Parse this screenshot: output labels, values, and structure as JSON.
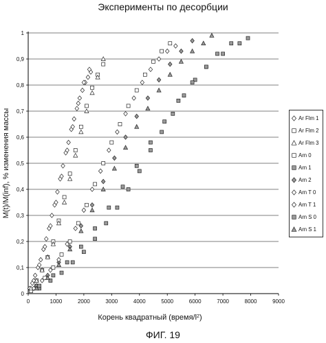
{
  "figure_label": "ФИГ. 19",
  "chart_data": {
    "type": "scatter",
    "title": "Эксперименты по десорбции",
    "xlabel": "Корень квадратный (время/l",
    "xlabel_sup": "2",
    "xlabel_tail": ")",
    "ylabel": "M(t)/M(inf), % изменения массы",
    "xlim": [
      0,
      9000
    ],
    "ylim": [
      0,
      1
    ],
    "xticks": [
      "0",
      "1000",
      "2000",
      "3000",
      "4000",
      "5000",
      "6000",
      "7000",
      "8000",
      "9000"
    ],
    "yticks": [
      "0",
      "0,1",
      "0,2",
      "0,3",
      "0,4",
      "0,5",
      "0,6",
      "0,7",
      "0,8",
      "0,9",
      "1"
    ],
    "grid": "horizontal",
    "legend_position": "right",
    "series": [
      {
        "name": "Ar Flm 1",
        "marker": "diamond",
        "fill": "#ffffff",
        "x": [
          50,
          150,
          250,
          350,
          450,
          550,
          650,
          750,
          850,
          950,
          1050,
          1150,
          1250,
          1350,
          1450,
          1550,
          1650,
          1750,
          1850,
          1950,
          2050,
          2150,
          2250
        ],
        "y": [
          0.02,
          0.04,
          0.07,
          0.1,
          0.13,
          0.17,
          0.21,
          0.25,
          0.3,
          0.34,
          0.39,
          0.44,
          0.49,
          0.54,
          0.58,
          0.63,
          0.67,
          0.71,
          0.75,
          0.78,
          0.81,
          0.83,
          0.85
        ]
      },
      {
        "name": "Ar Flm 2",
        "marker": "square",
        "fill": "#ffffff",
        "x": [
          100,
          300,
          500,
          700,
          900,
          1100,
          1300,
          1500,
          1700,
          1900,
          2100,
          2300,
          2500,
          2700
        ],
        "y": [
          0.01,
          0.05,
          0.09,
          0.14,
          0.2,
          0.28,
          0.37,
          0.46,
          0.55,
          0.64,
          0.72,
          0.79,
          0.84,
          0.88
        ]
      },
      {
        "name": "Ar Flm 3",
        "marker": "triangle",
        "fill": "#ffffff",
        "x": [
          100,
          300,
          500,
          700,
          900,
          1100,
          1300,
          1500,
          1700,
          1900,
          2100,
          2300,
          2500,
          2700
        ],
        "y": [
          0.02,
          0.05,
          0.09,
          0.14,
          0.19,
          0.27,
          0.35,
          0.44,
          0.53,
          0.62,
          0.7,
          0.77,
          0.83,
          0.9
        ]
      },
      {
        "name": "Arn 0",
        "marker": "square",
        "fill": "#ffffff",
        "x": [
          300,
          600,
          900,
          1200,
          1500,
          1800,
          2100,
          2400,
          2700,
          3000,
          3300,
          3600,
          3900,
          4200,
          4500,
          4800,
          5100
        ],
        "y": [
          0.03,
          0.06,
          0.1,
          0.15,
          0.2,
          0.27,
          0.34,
          0.42,
          0.5,
          0.58,
          0.65,
          0.72,
          0.78,
          0.84,
          0.89,
          0.93,
          0.96
        ]
      },
      {
        "name": "Arn 1",
        "marker": "square",
        "fill": "#9a9a9a",
        "x": [
          400,
          800,
          1200,
          1600,
          2000,
          2400,
          2800,
          3200,
          3600,
          4000,
          4400,
          4800,
          5200,
          5600,
          6000,
          6400,
          6800,
          7300,
          7900
        ],
        "y": [
          0.02,
          0.05,
          0.08,
          0.12,
          0.16,
          0.21,
          0.27,
          0.33,
          0.4,
          0.47,
          0.55,
          0.62,
          0.69,
          0.76,
          0.82,
          0.87,
          0.92,
          0.96,
          0.98
        ]
      },
      {
        "name": "Arn 2",
        "marker": "diamond",
        "fill": "#9a9a9a",
        "x": [
          300,
          700,
          1100,
          1500,
          1900,
          2300,
          2700,
          3100,
          3500,
          3900,
          4300,
          4700,
          5100,
          5500,
          5900
        ],
        "y": [
          0.03,
          0.07,
          0.12,
          0.18,
          0.26,
          0.34,
          0.43,
          0.52,
          0.6,
          0.68,
          0.75,
          0.82,
          0.88,
          0.93,
          0.97
        ]
      },
      {
        "name": "Arn T 0",
        "marker": "diamond",
        "fill": "#ffffff",
        "x": [
          200,
          500,
          800,
          1100,
          1400,
          1700,
          2000,
          2300,
          2600,
          2900,
          3200,
          3500,
          3800,
          4100,
          4400,
          4700,
          5000,
          5300
        ],
        "y": [
          0.02,
          0.05,
          0.09,
          0.13,
          0.19,
          0.25,
          0.32,
          0.4,
          0.47,
          0.55,
          0.62,
          0.69,
          0.75,
          0.81,
          0.86,
          0.9,
          0.93,
          0.95
        ]
      },
      {
        "name": "Arn T 1",
        "marker": "diamond",
        "fill": "#ffffff",
        "x": [
          200,
          400,
          600,
          800,
          1000,
          1200,
          1400,
          1600,
          1800,
          2000,
          2200
        ],
        "y": [
          0.05,
          0.11,
          0.18,
          0.26,
          0.35,
          0.45,
          0.55,
          0.64,
          0.73,
          0.81,
          0.86
        ]
      },
      {
        "name": "Arn S 0",
        "marker": "square",
        "fill": "#9a9a9a",
        "x": [
          400,
          900,
          1400,
          1900,
          2400,
          2900,
          3400,
          3900,
          4400,
          4900,
          5400,
          5900,
          6400,
          7000,
          7600
        ],
        "y": [
          0.03,
          0.07,
          0.12,
          0.18,
          0.25,
          0.33,
          0.41,
          0.49,
          0.58,
          0.66,
          0.74,
          0.81,
          0.87,
          0.92,
          0.96
        ]
      },
      {
        "name": "Arn S 1",
        "marker": "triangle",
        "fill": "#9a9a9a",
        "x": [
          300,
          700,
          1100,
          1500,
          1900,
          2300,
          2700,
          3100,
          3500,
          3900,
          4300,
          4700,
          5100,
          5500,
          5900,
          6300,
          6600
        ],
        "y": [
          0.02,
          0.06,
          0.11,
          0.17,
          0.24,
          0.32,
          0.4,
          0.48,
          0.56,
          0.64,
          0.71,
          0.78,
          0.84,
          0.89,
          0.93,
          0.96,
          0.99
        ]
      }
    ]
  }
}
